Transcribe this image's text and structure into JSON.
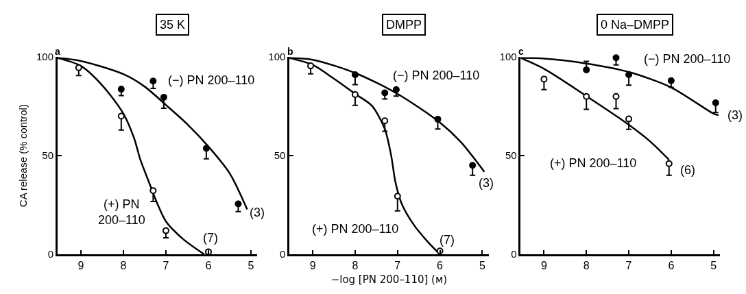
{
  "chart_data": [
    {
      "type": "scatter",
      "title": "35 K",
      "subtitle": "a",
      "ylabel": "CA release (% control)",
      "xlim": [
        9.55,
        4.85
      ],
      "xticks": [
        9,
        8,
        7,
        6,
        5
      ],
      "ylim": [
        0,
        100
      ],
      "yticks": [
        0,
        50,
        100
      ],
      "marker": "circle",
      "tick_labels": "xy",
      "series": [
        {
          "type": "line",
          "marker": "none",
          "color": "#000000",
          "x": [
            9.55,
            9,
            8,
            7.5,
            7,
            6.5,
            6,
            5.5,
            5.09
          ],
          "values": [
            99.5,
            98,
            91.3,
            85,
            75.7,
            66,
            54.6,
            41,
            22.8
          ]
        },
        {
          "type": "line",
          "marker": "none",
          "color": "#000000",
          "x": [
            9.55,
            9,
            8.5,
            8,
            7.75,
            7.6,
            7.4,
            7.2,
            7,
            6.6,
            6.1
          ],
          "values": [
            99.5,
            95.5,
            85.7,
            71.3,
            59,
            47.9,
            36.7,
            25.6,
            16.7,
            7.8,
            0
          ]
        },
        {
          "color": "#000000",
          "x": [
            8.05,
            7.3,
            7.05,
            6.05,
            5.3
          ],
          "values": [
            83.7,
            87.8,
            79.6,
            53.7,
            25.6
          ],
          "errors": [
            [
              80.4,
              83.7
            ],
            [
              84.1,
              87.8
            ],
            [
              74,
              79.6
            ],
            [
              48.4,
              53.7
            ],
            [
              21.7,
              25.6
            ]
          ]
        },
        {
          "color": "#ffffff",
          "x": [
            9.05,
            8.05,
            7.3,
            7.0,
            6.0
          ],
          "values": [
            94.6,
            70,
            32.3,
            12,
            1.3
          ],
          "errors": [
            [
              90.6,
              94.6
            ],
            [
              63,
              70
            ],
            [
              26.8,
              32.3
            ],
            [
              8.4,
              12
            ],
            null
          ]
        }
      ],
      "annotations": [
        "(−) PN 200–110",
        "(+) PN\n200–110",
        "(3)",
        "(7)"
      ]
    },
    {
      "type": "scatter",
      "title": "DMPP",
      "subtitle": "b",
      "xlabel": "−log [PN 200–110] (ᴍ)",
      "xlim": [
        9.55,
        4.85
      ],
      "xticks": [
        9,
        8,
        7,
        6,
        5
      ],
      "ylim": [
        0,
        100
      ],
      "yticks": [
        0,
        50,
        100
      ],
      "marker": "circle",
      "series": [
        {
          "type": "line",
          "marker": "none",
          "color": "#000000",
          "x": [
            9.55,
            9,
            8,
            7,
            6,
            5.5,
            4.95
          ],
          "values": [
            99.5,
            98.6,
            91.9,
            81.3,
            66.8,
            56.8,
            41.8
          ]
        },
        {
          "type": "line",
          "marker": "none",
          "color": "#000000",
          "x": [
            9.55,
            9,
            8.5,
            8,
            7.6,
            7.3,
            7.15,
            7.05,
            6.9,
            6.6,
            6.3,
            6.0
          ],
          "values": [
            99.5,
            96,
            89,
            81.3,
            75.2,
            63.5,
            50.1,
            36.7,
            25.6,
            14.5,
            6.7,
            0
          ]
        },
        {
          "color": "#000000",
          "x": [
            8.0,
            7.3,
            7.03,
            6.05,
            5.23
          ],
          "values": [
            91,
            81.8,
            83.5,
            68.5,
            45.1
          ],
          "errors": [
            [
              86,
              91
            ],
            [
              78.7,
              81.8
            ],
            [
              80.2,
              83.5
            ],
            [
              63.5,
              68.5
            ],
            [
              40.1,
              45.1
            ]
          ]
        },
        {
          "color": "#ffffff",
          "x": [
            9.05,
            8.0,
            7.3,
            7.0,
            6.0
          ],
          "values": [
            95.5,
            81,
            67.7,
            29.5,
            1.7
          ],
          "errors": [
            [
              91.5,
              95.5
            ],
            [
              75.5,
              81
            ],
            [
              62.4,
              67.7
            ],
            [
              22,
              29.5
            ],
            null
          ]
        }
      ],
      "annotations": [
        "(−) PN 200–110",
        "(+) PN 200–110",
        "(3)",
        "(7)"
      ]
    },
    {
      "type": "scatter",
      "title": "0 Na–DMPP",
      "subtitle": "c",
      "xlim": [
        9.55,
        4.85
      ],
      "xticks": [
        9,
        8,
        7,
        6,
        5
      ],
      "ylim": [
        0,
        100
      ],
      "yticks": [
        0,
        50,
        100
      ],
      "marker": "circle",
      "series": [
        {
          "type": "line",
          "marker": "none",
          "color": "#000000",
          "x": [
            9.55,
            9,
            8,
            7,
            6,
            5,
            4.88
          ],
          "values": [
            99.5,
            99.2,
            96.7,
            92.4,
            84.6,
            71.3,
            70.5
          ]
        },
        {
          "type": "line",
          "marker": "none",
          "color": "#000000",
          "x": [
            9.55,
            9,
            8,
            7,
            6.5,
            6.05
          ],
          "values": [
            99.5,
            94,
            80.2,
            65.7,
            57.3,
            47.9
          ]
        },
        {
          "color": "#000000",
          "x": [
            8.0,
            7.3,
            7.0,
            6.0,
            4.95
          ],
          "values": [
            93.5,
            99.6,
            91,
            88,
            76.8
          ],
          "errors": [
            [
              93.5,
              97.8
            ],
            [
              96,
              99.6
            ],
            [
              85.7,
              91
            ],
            [
              84.6,
              88
            ],
            [
              71.8,
              76.8
            ]
          ]
        },
        {
          "color": "#ffffff",
          "x": [
            9.0,
            8.0,
            7.3,
            7.0,
            6.05
          ],
          "values": [
            88.8,
            80,
            80,
            68.6,
            46
          ],
          "errors": [
            [
              83.5,
              88.8
            ],
            [
              73.5,
              80
            ],
            [
              73.8,
              80
            ],
            [
              63.3,
              68.6
            ],
            [
              40.1,
              46
            ]
          ]
        }
      ],
      "annotations": [
        "(−) PN 200–110",
        "(+) PN 200–110",
        "(6)",
        "(3)"
      ]
    }
  ]
}
